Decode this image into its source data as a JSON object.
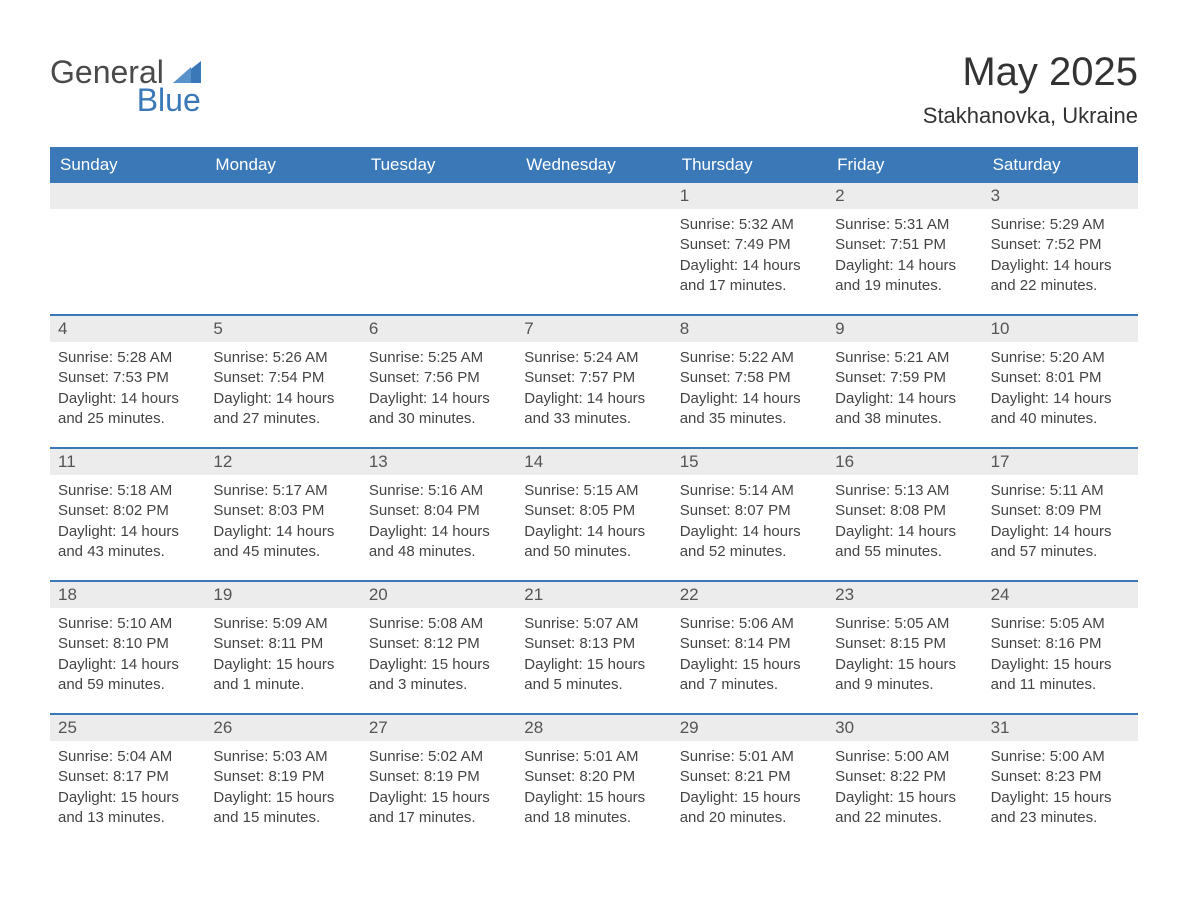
{
  "logo": {
    "word1": "General",
    "word2": "Blue",
    "icon_color": "#3a78b8"
  },
  "title": "May 2025",
  "location": "Stakhanovka, Ukraine",
  "colors": {
    "header_bg": "#3a78b8",
    "header_text": "#ffffff",
    "daynum_bg": "#ececec",
    "text": "#444444",
    "rule": "#3a78b8"
  },
  "weekdays": [
    "Sunday",
    "Monday",
    "Tuesday",
    "Wednesday",
    "Thursday",
    "Friday",
    "Saturday"
  ],
  "weeks": [
    [
      {
        "n": "",
        "lines": [
          "",
          "",
          "",
          ""
        ]
      },
      {
        "n": "",
        "lines": [
          "",
          "",
          "",
          ""
        ]
      },
      {
        "n": "",
        "lines": [
          "",
          "",
          "",
          ""
        ]
      },
      {
        "n": "",
        "lines": [
          "",
          "",
          "",
          ""
        ]
      },
      {
        "n": "1",
        "lines": [
          "Sunrise: 5:32 AM",
          "Sunset: 7:49 PM",
          "Daylight: 14 hours",
          "and 17 minutes."
        ]
      },
      {
        "n": "2",
        "lines": [
          "Sunrise: 5:31 AM",
          "Sunset: 7:51 PM",
          "Daylight: 14 hours",
          "and 19 minutes."
        ]
      },
      {
        "n": "3",
        "lines": [
          "Sunrise: 5:29 AM",
          "Sunset: 7:52 PM",
          "Daylight: 14 hours",
          "and 22 minutes."
        ]
      }
    ],
    [
      {
        "n": "4",
        "lines": [
          "Sunrise: 5:28 AM",
          "Sunset: 7:53 PM",
          "Daylight: 14 hours",
          "and 25 minutes."
        ]
      },
      {
        "n": "5",
        "lines": [
          "Sunrise: 5:26 AM",
          "Sunset: 7:54 PM",
          "Daylight: 14 hours",
          "and 27 minutes."
        ]
      },
      {
        "n": "6",
        "lines": [
          "Sunrise: 5:25 AM",
          "Sunset: 7:56 PM",
          "Daylight: 14 hours",
          "and 30 minutes."
        ]
      },
      {
        "n": "7",
        "lines": [
          "Sunrise: 5:24 AM",
          "Sunset: 7:57 PM",
          "Daylight: 14 hours",
          "and 33 minutes."
        ]
      },
      {
        "n": "8",
        "lines": [
          "Sunrise: 5:22 AM",
          "Sunset: 7:58 PM",
          "Daylight: 14 hours",
          "and 35 minutes."
        ]
      },
      {
        "n": "9",
        "lines": [
          "Sunrise: 5:21 AM",
          "Sunset: 7:59 PM",
          "Daylight: 14 hours",
          "and 38 minutes."
        ]
      },
      {
        "n": "10",
        "lines": [
          "Sunrise: 5:20 AM",
          "Sunset: 8:01 PM",
          "Daylight: 14 hours",
          "and 40 minutes."
        ]
      }
    ],
    [
      {
        "n": "11",
        "lines": [
          "Sunrise: 5:18 AM",
          "Sunset: 8:02 PM",
          "Daylight: 14 hours",
          "and 43 minutes."
        ]
      },
      {
        "n": "12",
        "lines": [
          "Sunrise: 5:17 AM",
          "Sunset: 8:03 PM",
          "Daylight: 14 hours",
          "and 45 minutes."
        ]
      },
      {
        "n": "13",
        "lines": [
          "Sunrise: 5:16 AM",
          "Sunset: 8:04 PM",
          "Daylight: 14 hours",
          "and 48 minutes."
        ]
      },
      {
        "n": "14",
        "lines": [
          "Sunrise: 5:15 AM",
          "Sunset: 8:05 PM",
          "Daylight: 14 hours",
          "and 50 minutes."
        ]
      },
      {
        "n": "15",
        "lines": [
          "Sunrise: 5:14 AM",
          "Sunset: 8:07 PM",
          "Daylight: 14 hours",
          "and 52 minutes."
        ]
      },
      {
        "n": "16",
        "lines": [
          "Sunrise: 5:13 AM",
          "Sunset: 8:08 PM",
          "Daylight: 14 hours",
          "and 55 minutes."
        ]
      },
      {
        "n": "17",
        "lines": [
          "Sunrise: 5:11 AM",
          "Sunset: 8:09 PM",
          "Daylight: 14 hours",
          "and 57 minutes."
        ]
      }
    ],
    [
      {
        "n": "18",
        "lines": [
          "Sunrise: 5:10 AM",
          "Sunset: 8:10 PM",
          "Daylight: 14 hours",
          "and 59 minutes."
        ]
      },
      {
        "n": "19",
        "lines": [
          "Sunrise: 5:09 AM",
          "Sunset: 8:11 PM",
          "Daylight: 15 hours",
          "and 1 minute."
        ]
      },
      {
        "n": "20",
        "lines": [
          "Sunrise: 5:08 AM",
          "Sunset: 8:12 PM",
          "Daylight: 15 hours",
          "and 3 minutes."
        ]
      },
      {
        "n": "21",
        "lines": [
          "Sunrise: 5:07 AM",
          "Sunset: 8:13 PM",
          "Daylight: 15 hours",
          "and 5 minutes."
        ]
      },
      {
        "n": "22",
        "lines": [
          "Sunrise: 5:06 AM",
          "Sunset: 8:14 PM",
          "Daylight: 15 hours",
          "and 7 minutes."
        ]
      },
      {
        "n": "23",
        "lines": [
          "Sunrise: 5:05 AM",
          "Sunset: 8:15 PM",
          "Daylight: 15 hours",
          "and 9 minutes."
        ]
      },
      {
        "n": "24",
        "lines": [
          "Sunrise: 5:05 AM",
          "Sunset: 8:16 PM",
          "Daylight: 15 hours",
          "and 11 minutes."
        ]
      }
    ],
    [
      {
        "n": "25",
        "lines": [
          "Sunrise: 5:04 AM",
          "Sunset: 8:17 PM",
          "Daylight: 15 hours",
          "and 13 minutes."
        ]
      },
      {
        "n": "26",
        "lines": [
          "Sunrise: 5:03 AM",
          "Sunset: 8:19 PM",
          "Daylight: 15 hours",
          "and 15 minutes."
        ]
      },
      {
        "n": "27",
        "lines": [
          "Sunrise: 5:02 AM",
          "Sunset: 8:19 PM",
          "Daylight: 15 hours",
          "and 17 minutes."
        ]
      },
      {
        "n": "28",
        "lines": [
          "Sunrise: 5:01 AM",
          "Sunset: 8:20 PM",
          "Daylight: 15 hours",
          "and 18 minutes."
        ]
      },
      {
        "n": "29",
        "lines": [
          "Sunrise: 5:01 AM",
          "Sunset: 8:21 PM",
          "Daylight: 15 hours",
          "and 20 minutes."
        ]
      },
      {
        "n": "30",
        "lines": [
          "Sunrise: 5:00 AM",
          "Sunset: 8:22 PM",
          "Daylight: 15 hours",
          "and 22 minutes."
        ]
      },
      {
        "n": "31",
        "lines": [
          "Sunrise: 5:00 AM",
          "Sunset: 8:23 PM",
          "Daylight: 15 hours",
          "and 23 minutes."
        ]
      }
    ]
  ]
}
